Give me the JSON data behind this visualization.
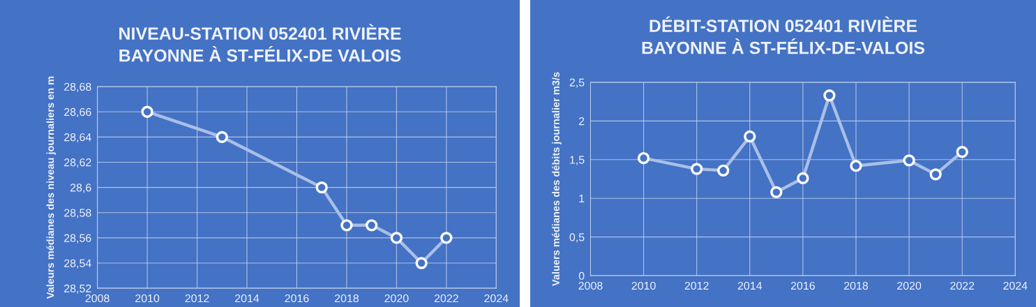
{
  "chart_data": [
    {
      "type": "line",
      "title": "NIVEAU-STATION 052401 RIVIÈRE\nBAYONNE À ST-FÉLIX-DE VALOIS",
      "ylabel": "Valeurs médianes des niveau journaliers en m",
      "x": [
        2010,
        2013,
        2017,
        2018,
        2019,
        2020,
        2021,
        2022
      ],
      "series": [
        {
          "color": "#a9bfe8",
          "values": [
            28.66,
            28.64,
            28.6,
            28.57,
            28.57,
            28.56,
            28.54,
            28.56
          ]
        }
      ],
      "xlim": [
        2008,
        2024
      ],
      "xticks": [
        2008,
        2010,
        2012,
        2014,
        2016,
        2018,
        2020,
        2022,
        2024
      ],
      "ylim": [
        28.52,
        28.68
      ],
      "yticks": [
        {
          "value": 28.52,
          "label": "28,52"
        },
        {
          "value": 28.54,
          "label": "28,54"
        },
        {
          "value": 28.56,
          "label": "28,56"
        },
        {
          "value": 28.58,
          "label": "28,58"
        },
        {
          "value": 28.6,
          "label": "28,6"
        },
        {
          "value": 28.62,
          "label": "28,62"
        },
        {
          "value": 28.64,
          "label": "28,64"
        },
        {
          "value": 28.66,
          "label": "28,66"
        },
        {
          "value": 28.68,
          "label": "28,68"
        }
      ],
      "grid": true,
      "marker": "circle",
      "line_style": "solid"
    },
    {
      "type": "line",
      "title": "DÉBIT-STATION 052401 RIVIÈRE\nBAYONNE À ST-FÉLIX-DE-VALOIS",
      "ylabel": "Valuers médianes des débits journalier m3/s",
      "x": [
        2010,
        2012,
        2013,
        2014,
        2015,
        2016,
        2017,
        2018,
        2020,
        2021,
        2022
      ],
      "series": [
        {
          "color": "#a9bfe8",
          "values": [
            1.52,
            1.38,
            1.36,
            1.8,
            1.08,
            1.26,
            2.33,
            1.42,
            1.49,
            1.31,
            1.6
          ]
        }
      ],
      "xlim": [
        2008,
        2024
      ],
      "xticks": [
        2008,
        2010,
        2012,
        2014,
        2016,
        2018,
        2020,
        2022,
        2024
      ],
      "ylim": [
        0,
        2.5
      ],
      "yticks": [
        0,
        {
          "value": 0.5,
          "label": "0,5"
        },
        1,
        {
          "value": 1.5,
          "label": "1,5"
        },
        2,
        {
          "value": 2.5,
          "label": "2,5"
        }
      ],
      "grid": true,
      "marker": "circle",
      "line_style": "solid"
    }
  ]
}
